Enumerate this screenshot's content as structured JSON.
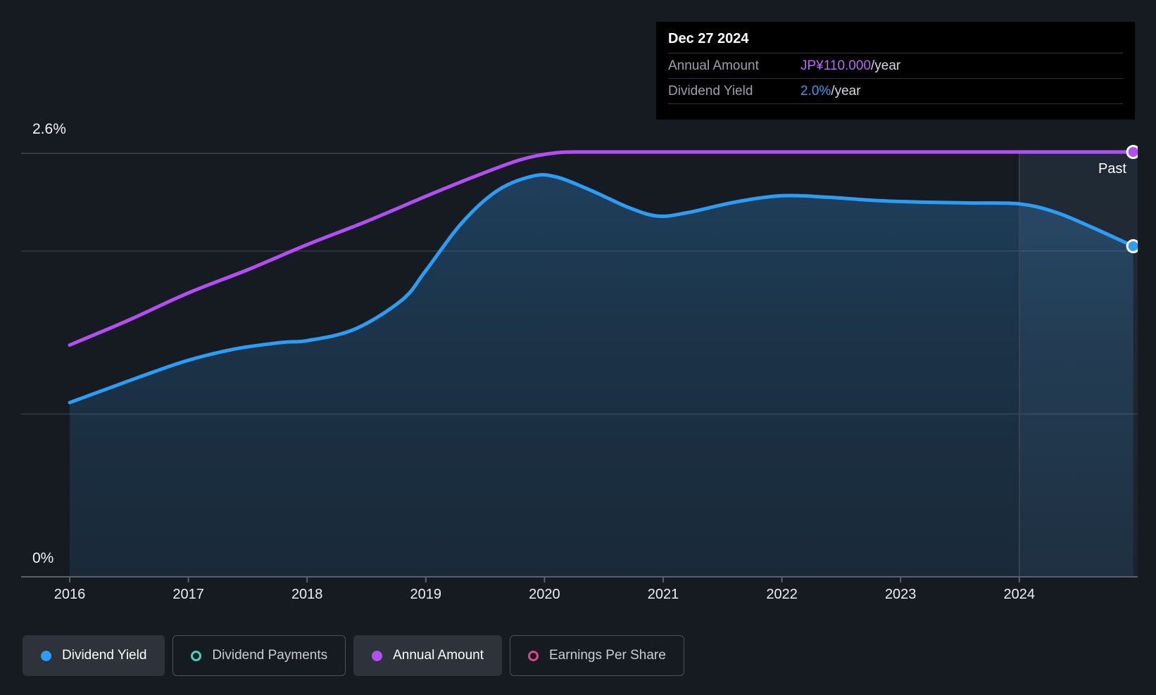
{
  "tooltip": {
    "date": "Dec 27 2024",
    "rows": [
      {
        "label": "Annual Amount",
        "value": "JP¥110.000",
        "suffix": "/year",
        "color": "#b869f5"
      },
      {
        "label": "Dividend Yield",
        "value": "2.0%",
        "suffix": "/year",
        "color": "#2f9ff2"
      }
    ]
  },
  "past_label": "Past",
  "axis": {
    "y_top_label": "2.6%",
    "y_bottom_label": "0%"
  },
  "legend": [
    {
      "label": "Dividend Yield",
      "color": "#2b9df4",
      "style": "filled",
      "active": true
    },
    {
      "label": "Dividend Payments",
      "color": "#46d1c2",
      "style": "outline",
      "active": false
    },
    {
      "label": "Annual Amount",
      "color": "#b14ff0",
      "style": "filled",
      "active": true
    },
    {
      "label": "Earnings Per Share",
      "color": "#d9498a",
      "style": "outline",
      "active": false
    }
  ],
  "chart_data": {
    "type": "area",
    "title": "Dividend history",
    "x_domain": [
      2016,
      2024.96
    ],
    "x_ticks": [
      2016,
      2017,
      2018,
      2019,
      2020,
      2021,
      2022,
      2023,
      2024
    ],
    "y_axis": {
      "unit": "percent",
      "ylim": [
        0,
        2.6
      ],
      "gridlines_pct": [
        2.6,
        2.0,
        1.0,
        0
      ],
      "labeled": {
        "2.6": "2.6%",
        "0": "0%"
      }
    },
    "past_divider_year": 2024,
    "series": [
      {
        "name": "Dividend Yield",
        "unit": "percent_per_year",
        "color": "#2b9df4",
        "area_fill": true,
        "end_value_label": "2.0%/year",
        "points": [
          [
            2016.0,
            1.07
          ],
          [
            2016.3,
            1.15
          ],
          [
            2016.6,
            1.23
          ],
          [
            2017.0,
            1.33
          ],
          [
            2017.4,
            1.4
          ],
          [
            2017.8,
            1.44
          ],
          [
            2018.0,
            1.45
          ],
          [
            2018.4,
            1.52
          ],
          [
            2018.8,
            1.7
          ],
          [
            2019.0,
            1.88
          ],
          [
            2019.3,
            2.17
          ],
          [
            2019.6,
            2.37
          ],
          [
            2019.9,
            2.46
          ],
          [
            2020.1,
            2.455
          ],
          [
            2020.4,
            2.37
          ],
          [
            2020.7,
            2.27
          ],
          [
            2020.95,
            2.215
          ],
          [
            2021.2,
            2.235
          ],
          [
            2021.6,
            2.3
          ],
          [
            2022.0,
            2.34
          ],
          [
            2022.4,
            2.33
          ],
          [
            2022.8,
            2.31
          ],
          [
            2023.2,
            2.3
          ],
          [
            2023.6,
            2.295
          ],
          [
            2024.0,
            2.29
          ],
          [
            2024.3,
            2.24
          ],
          [
            2024.6,
            2.15
          ],
          [
            2024.96,
            2.03
          ]
        ]
      },
      {
        "name": "Annual Amount",
        "unit": "JPY_per_year",
        "color": "#b14ff0",
        "area_fill": false,
        "end_value_label": "JP¥110.000/year",
        "value_scale": {
          "amount_110_at_pct": 2.609
        },
        "points": [
          [
            2016.0,
            60
          ],
          [
            2016.5,
            66.5
          ],
          [
            2017.0,
            73.5
          ],
          [
            2017.5,
            79.5
          ],
          [
            2018.0,
            86
          ],
          [
            2018.5,
            92
          ],
          [
            2019.0,
            98.5
          ],
          [
            2019.4,
            103.5
          ],
          [
            2019.8,
            108
          ],
          [
            2020.1,
            109.8
          ],
          [
            2020.4,
            110
          ],
          [
            2021.0,
            110
          ],
          [
            2022.0,
            110
          ],
          [
            2023.0,
            110
          ],
          [
            2024.0,
            110
          ],
          [
            2024.96,
            110
          ]
        ]
      }
    ]
  }
}
